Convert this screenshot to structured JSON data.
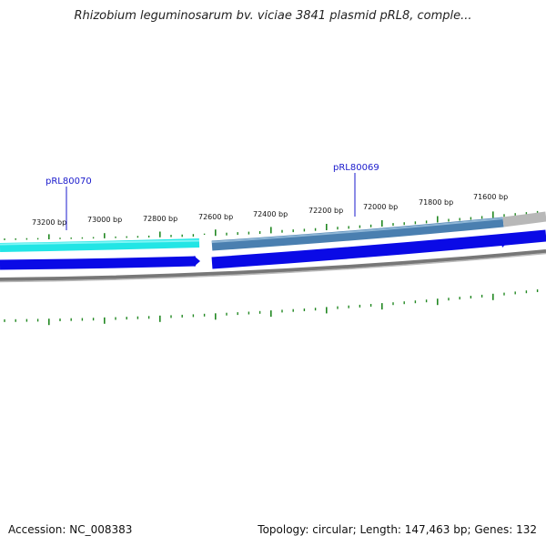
{
  "title": "Rhizobium leguminosarum bv. viciae 3841 plasmid pRL8, comple...",
  "footer": {
    "accession": "Accession: NC_008383",
    "summary": "Topology: circular; Length: 147,463 bp; Genes: 132"
  },
  "colors": {
    "gene_label": "#1a1acc",
    "tick": "#228822",
    "cds_cyan": "#22e5e5",
    "cds_steel": "#4a7fb0",
    "cds_gray": "#b8b8b8",
    "strand_blue": "#0a0ae6",
    "backbone": "#777777"
  },
  "genes": [
    {
      "label": "pRL80070"
    },
    {
      "label": "pRL80069"
    }
  ],
  "position_ticks": [
    "73200 bp",
    "73000 bp",
    "72800 bp",
    "72600 bp",
    "72400 bp",
    "72200 bp",
    "72000 bp",
    "71800 bp",
    "71600 bp"
  ]
}
